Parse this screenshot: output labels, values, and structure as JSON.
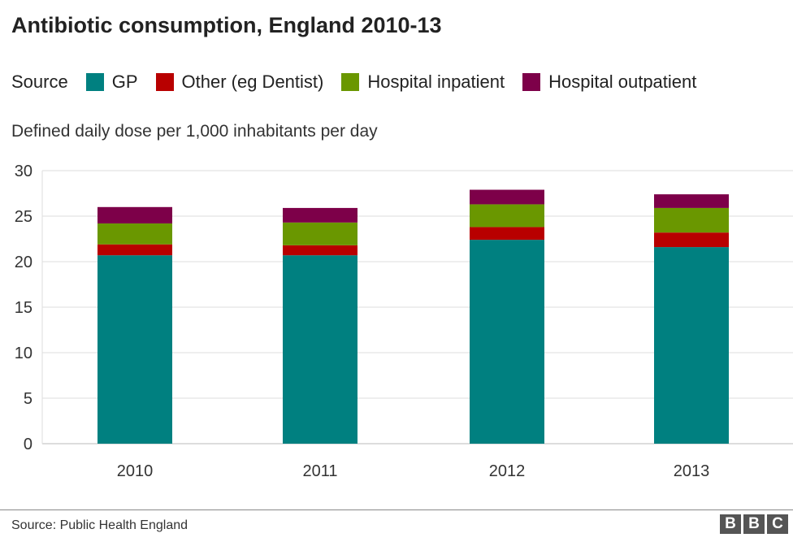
{
  "chart_data": {
    "type": "bar",
    "stacked": true,
    "title": "Antibiotic consumption, England 2010-13",
    "legend_title": "Source",
    "ylabel": "Defined daily dose per 1,000 inhabitants per day",
    "categories": [
      "2010",
      "2011",
      "2012",
      "2013"
    ],
    "ylim": [
      0,
      30
    ],
    "yticks": [
      0,
      5,
      10,
      15,
      20,
      25,
      30
    ],
    "grid": true,
    "legend_position": "top",
    "series": [
      {
        "name": "GP",
        "color": "#008080",
        "values": [
          20.7,
          20.7,
          22.4,
          21.6
        ]
      },
      {
        "name": "Other (eg Dentist)",
        "color": "#b80000",
        "values": [
          1.2,
          1.1,
          1.4,
          1.6
        ]
      },
      {
        "name": "Hospital inpatient",
        "color": "#6a9700",
        "values": [
          2.3,
          2.5,
          2.5,
          2.7
        ]
      },
      {
        "name": "Hospital outpatient",
        "color": "#7d0049",
        "values": [
          1.8,
          1.6,
          1.6,
          1.5
        ]
      }
    ]
  },
  "footer": {
    "source": "Source: Public Health England",
    "logo": "BBC"
  }
}
